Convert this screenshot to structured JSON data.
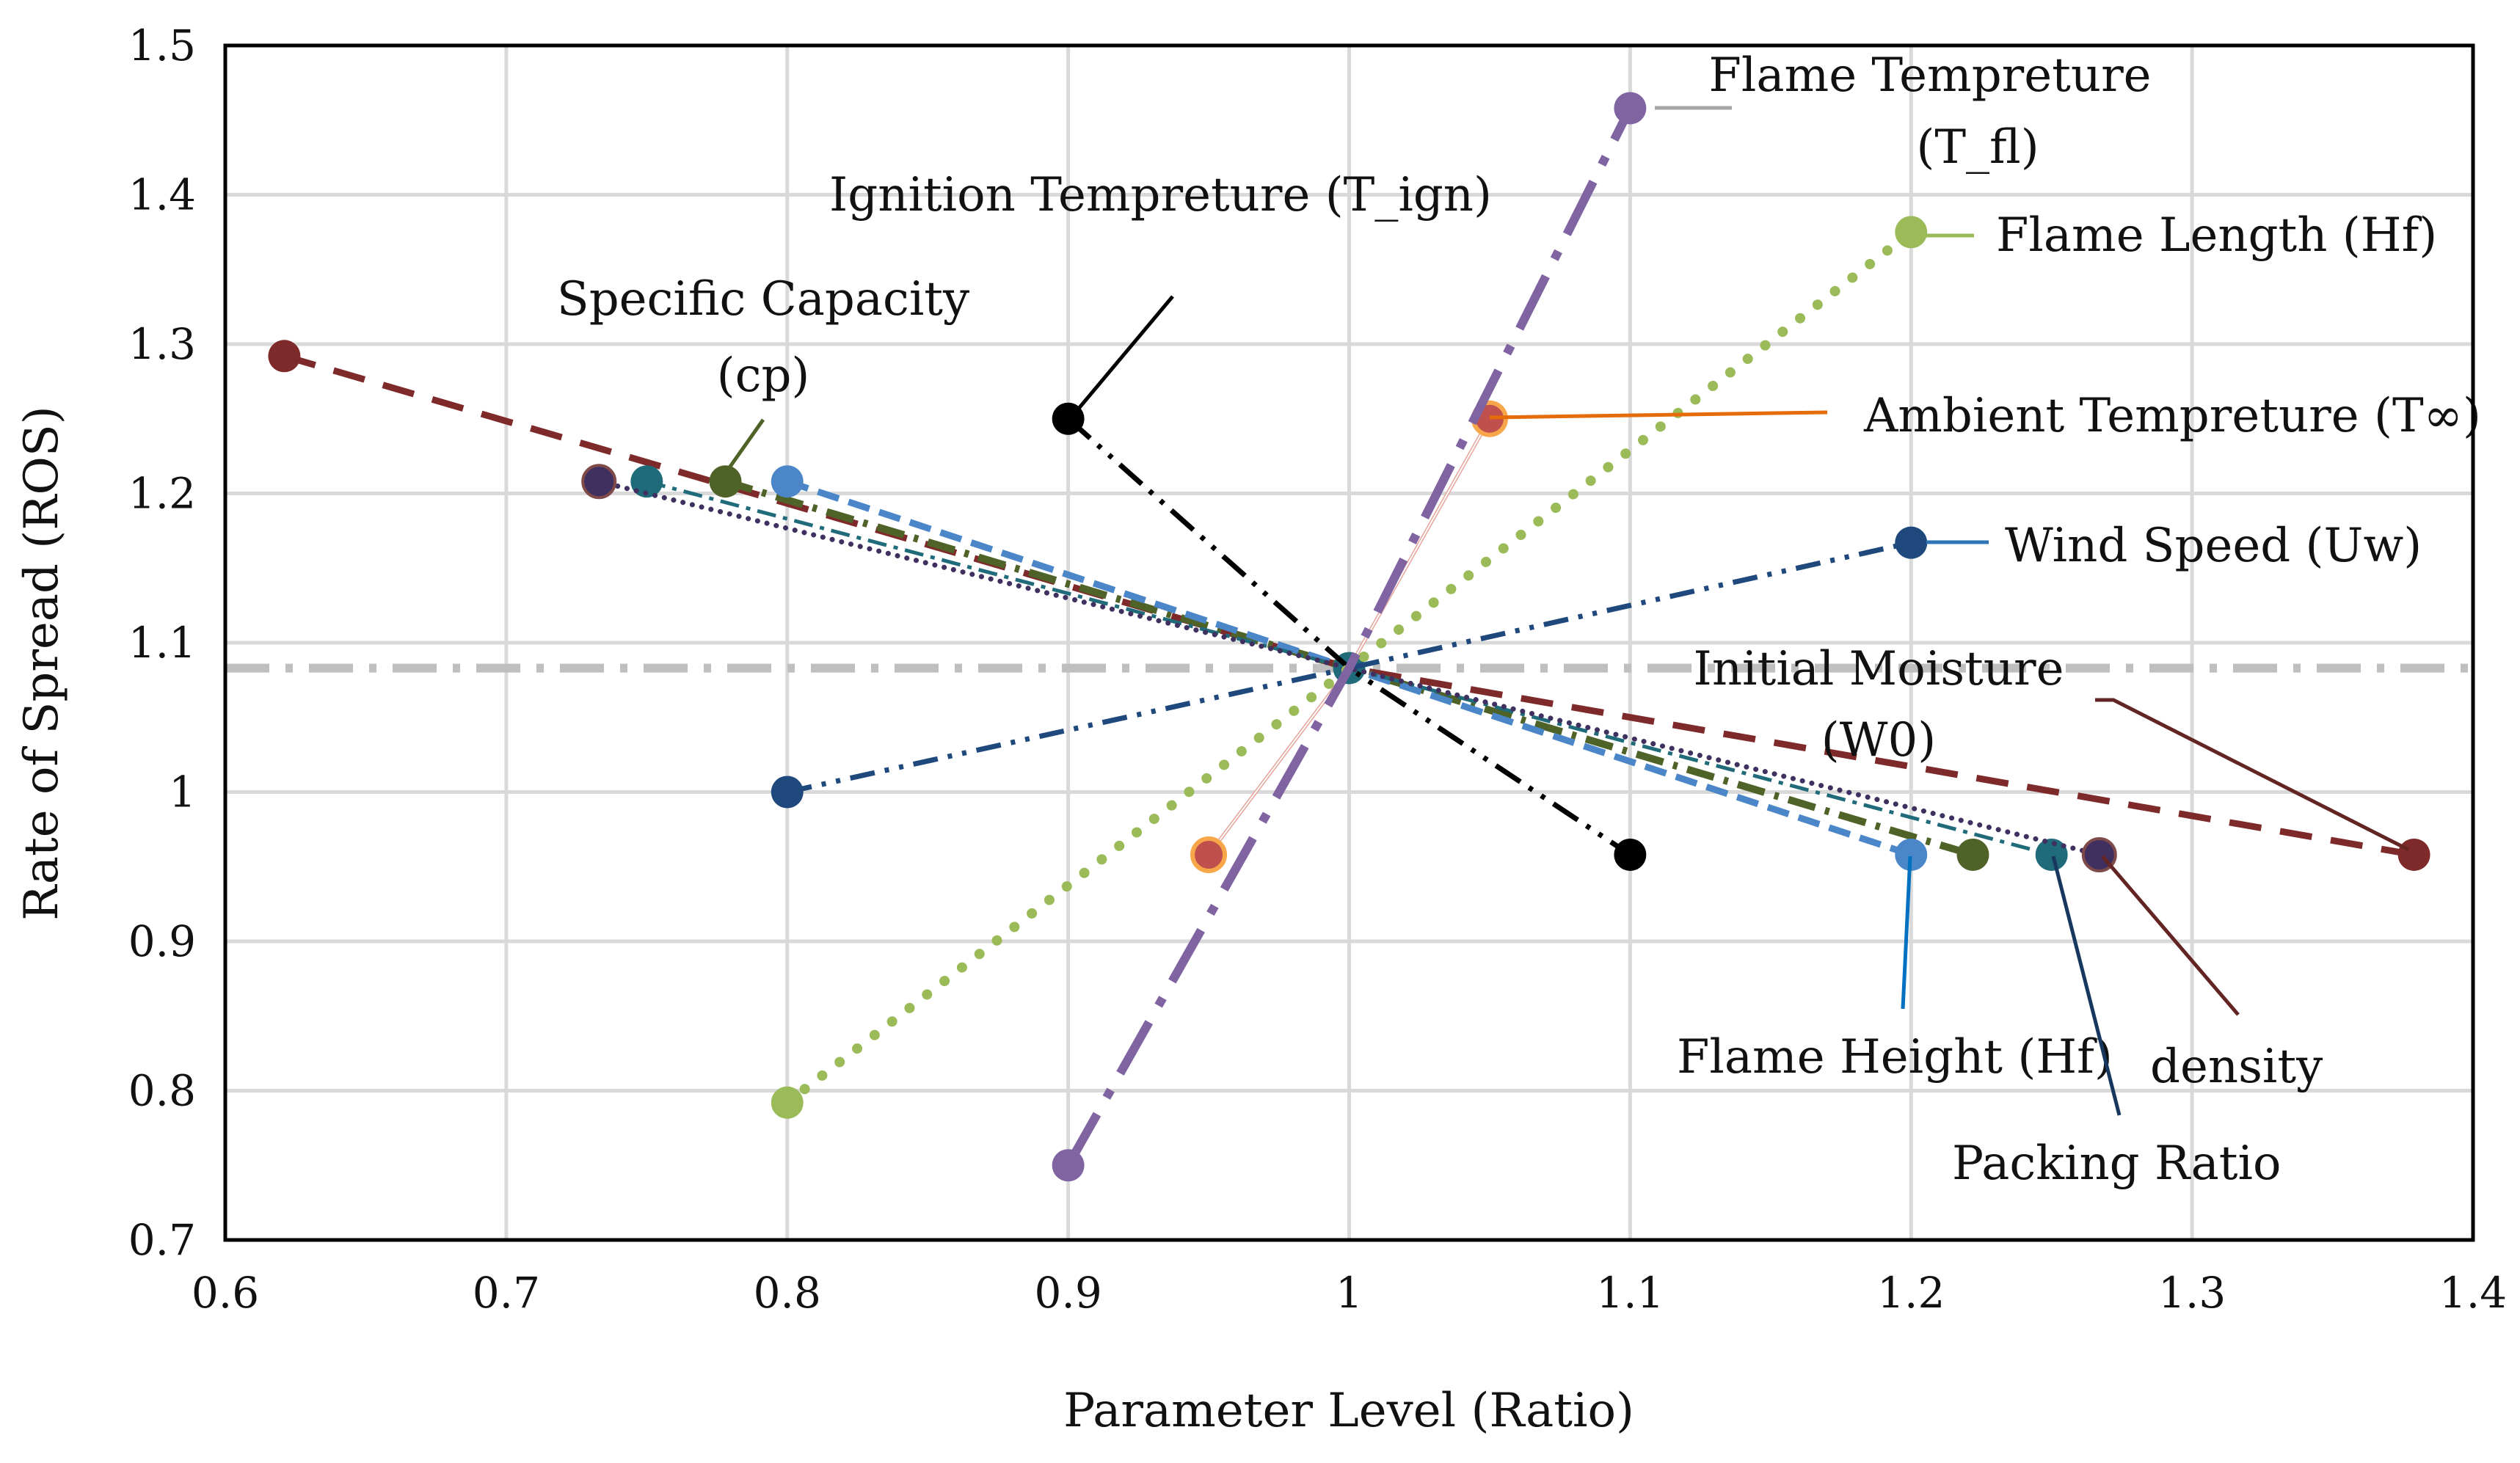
{
  "chart_data": {
    "type": "line",
    "title": "",
    "xlabel": "Parameter Level (Ratio)",
    "ylabel": "Rate of Spread (ROS)",
    "xlim": [
      0.6,
      1.4
    ],
    "ylim": [
      0.7,
      1.5
    ],
    "xticks": [
      0.6,
      0.7,
      0.8,
      0.9,
      1,
      1.1,
      1.2,
      1.3,
      1.4
    ],
    "yticks": [
      0.7,
      0.8,
      0.9,
      1,
      1.1,
      1.2,
      1.3,
      1.4,
      1.5
    ],
    "xtick_labels": [
      "0.6",
      "0.7",
      "0.8",
      "0.9",
      "1",
      "1.1",
      "1.2",
      "1.3",
      "1.4"
    ],
    "ytick_labels": [
      "0.7",
      "0.8",
      "0.9",
      "1",
      "1.1",
      "1.2",
      "1.3",
      "1.4",
      "1.5"
    ],
    "grid": true,
    "baseline": {
      "y": 1.083,
      "color": "#bfbfbf"
    },
    "series": [
      {
        "name": "Flame Tempreture (T_fl)",
        "color": "#8064a2",
        "x": [
          0.9,
          1.0,
          1.1
        ],
        "y": [
          0.75,
          1.083,
          1.458
        ]
      },
      {
        "name": "Flame Length (Hf)",
        "color": "#9bbb59",
        "x": [
          0.8,
          1.0,
          1.2
        ],
        "y": [
          0.792,
          1.083,
          1.375
        ]
      },
      {
        "name": "Ignition Tempreture (T_ign)",
        "color": "#000000",
        "x": [
          0.9,
          1.0,
          1.1
        ],
        "y": [
          1.25,
          1.083,
          0.958
        ]
      },
      {
        "name": "Ambient Tempreture (T∞)",
        "color": "#f79646",
        "x": [
          0.95,
          1.0,
          1.05
        ],
        "y": [
          0.958,
          1.083,
          1.25
        ]
      },
      {
        "name": "Wind Speed (Uw)",
        "color": "#1f497d",
        "x": [
          0.8,
          1.0,
          1.2
        ],
        "y": [
          1.0,
          1.083,
          1.167
        ]
      },
      {
        "name": "Initial Moisture (W0)",
        "color": "#7f2a2a",
        "x": [
          0.621,
          1.0,
          1.379
        ],
        "y": [
          1.292,
          1.083,
          0.958
        ]
      },
      {
        "name": "Specific Capacity (cp)",
        "color": "#4f6228",
        "x": [
          0.778,
          1.0,
          1.222
        ],
        "y": [
          1.208,
          1.083,
          0.958
        ]
      },
      {
        "name": "Flame Height (Hf)",
        "color": "#4a86c8",
        "x": [
          0.8,
          1.0,
          1.2
        ],
        "y": [
          1.208,
          1.083,
          0.958
        ]
      },
      {
        "name": "Packing Ratio",
        "color": "#1f6b7a",
        "x": [
          0.75,
          1.0,
          1.25
        ],
        "y": [
          1.208,
          1.083,
          0.958
        ]
      },
      {
        "name": "density",
        "color": "#3f3060",
        "x": [
          0.733,
          1.0,
          1.267
        ],
        "y": [
          1.208,
          1.083,
          0.958
        ]
      }
    ],
    "annotations": [
      {
        "id": "flame-temp",
        "lines": [
          "Flame Tempreture",
          "(T_fl)"
        ],
        "color": "#a6a6a6"
      },
      {
        "id": "ignition-temp",
        "lines": [
          "Ignition Tempreture (T_ign)"
        ],
        "color": "#000000"
      },
      {
        "id": "flame-length",
        "lines": [
          "Flame Length (Hf)"
        ],
        "color": "#9bbb59"
      },
      {
        "id": "specific-capacity",
        "lines": [
          "Specific Capacity",
          "(cp)"
        ],
        "color": "#4f6228"
      },
      {
        "id": "ambient-temp",
        "lines": [
          "Ambient Tempreture (T∞)"
        ],
        "color": "#e46c0a"
      },
      {
        "id": "wind-speed",
        "lines": [
          "Wind Speed (Uw)"
        ],
        "color": "#2e75b6"
      },
      {
        "id": "initial-moisture",
        "lines": [
          "Initial Moisture",
          "(W0)"
        ],
        "color": "#632523"
      },
      {
        "id": "flame-height",
        "lines": [
          "Flame Height (Hf)"
        ],
        "color": "#0070c0"
      },
      {
        "id": "density",
        "lines": [
          "density"
        ],
        "color": "#632523"
      },
      {
        "id": "packing-ratio",
        "lines": [
          "Packing Ratio"
        ],
        "color": "#17375e"
      }
    ]
  }
}
